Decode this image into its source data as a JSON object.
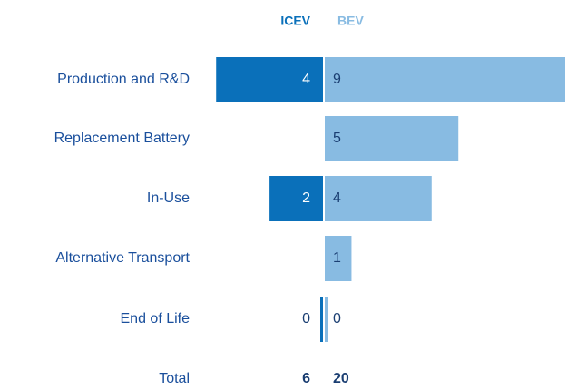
{
  "chart_data": {
    "type": "butterfly_bar",
    "categories": [
      "Production and R&D",
      "Replacement Battery",
      "In-Use",
      "Alternative Transport",
      "End of Life"
    ],
    "series": [
      {
        "name": "ICEV",
        "color": "#0a70ba",
        "side": "left",
        "values": [
          4,
          null,
          2,
          null,
          0
        ],
        "total": 6
      },
      {
        "name": "BEV",
        "color": "#88bbe2",
        "side": "right",
        "values": [
          9,
          5,
          4,
          1,
          0
        ],
        "total": 20
      }
    ],
    "total_label": "Total",
    "xlim": [
      0,
      9
    ]
  }
}
